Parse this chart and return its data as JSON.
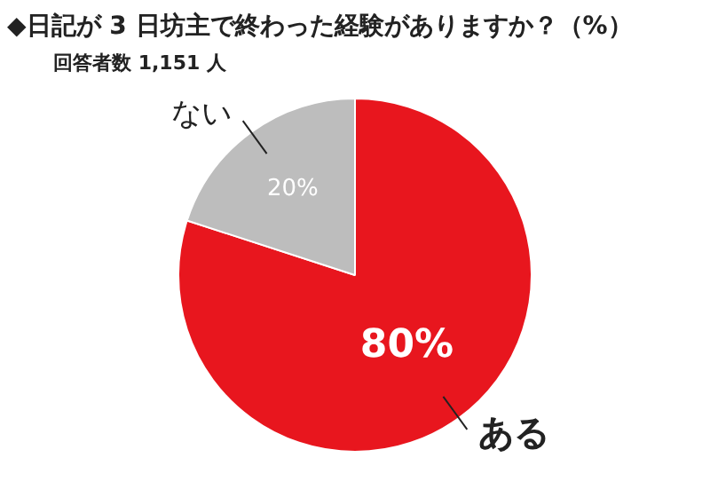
{
  "chart_data": {
    "type": "pie",
    "title": "◆日記が 3 日坊主で終わった経験がありますか？（%）",
    "subtitle": "回答者数 1,151 人",
    "categories": [
      "ある",
      "ない"
    ],
    "values": [
      80,
      20
    ],
    "colors": [
      "#e8161e",
      "#bdbdbd"
    ],
    "value_labels": [
      "80%",
      "20%"
    ],
    "legend": false
  }
}
